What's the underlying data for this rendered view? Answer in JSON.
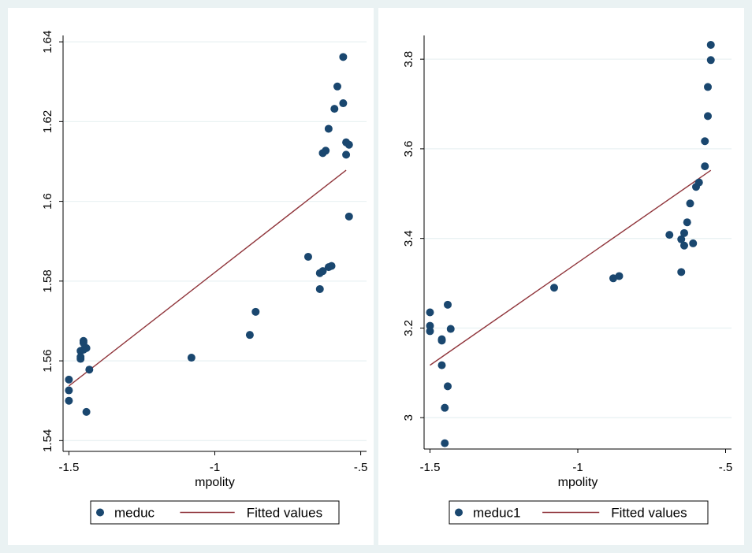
{
  "chart_data": [
    {
      "type": "scatter",
      "title": "",
      "xlabel": "mpolity",
      "ylabel": "",
      "xlim": [
        -1.52,
        -0.48
      ],
      "ylim": [
        1.5373,
        1.6416
      ],
      "x_ticks": [
        -1.5,
        -1,
        -0.5
      ],
      "x_tick_labels": [
        "-1.5",
        "-1",
        "-.5"
      ],
      "y_ticks": [
        1.54,
        1.56,
        1.58,
        1.6,
        1.62,
        1.64
      ],
      "y_tick_labels": [
        "1.54",
        "1.56",
        "1.58",
        "1.6",
        "1.62",
        "1.64"
      ],
      "grid": true,
      "legend_position": "bottom",
      "series": [
        {
          "name": "meduc",
          "kind": "scatter",
          "color": "#1a476f",
          "points": [
            [
              -1.5,
              1.5553
            ],
            [
              -1.5,
              1.5526
            ],
            [
              -1.5,
              1.55
            ],
            [
              -1.46,
              1.5625
            ],
            [
              -1.46,
              1.561
            ],
            [
              -1.46,
              1.5605
            ],
            [
              -1.45,
              1.565
            ],
            [
              -1.45,
              1.5645
            ],
            [
              -1.44,
              1.5632
            ],
            [
              -1.45,
              1.5628
            ],
            [
              -1.43,
              1.5578
            ],
            [
              -1.44,
              1.5472
            ],
            [
              -1.08,
              1.5608
            ],
            [
              -0.88,
              1.5665
            ],
            [
              -0.86,
              1.5723
            ],
            [
              -0.68,
              1.5861
            ],
            [
              -0.64,
              1.582
            ],
            [
              -0.64,
              1.578
            ],
            [
              -0.63,
              1.5825
            ],
            [
              -0.61,
              1.5835
            ],
            [
              -0.6,
              1.5838
            ],
            [
              -0.63,
              1.6121
            ],
            [
              -0.62,
              1.6127
            ],
            [
              -0.61,
              1.6182
            ],
            [
              -0.59,
              1.6232
            ],
            [
              -0.58,
              1.6288
            ],
            [
              -0.56,
              1.6362
            ],
            [
              -0.56,
              1.6246
            ],
            [
              -0.55,
              1.6148
            ],
            [
              -0.55,
              1.6117
            ],
            [
              -0.54,
              1.6142
            ],
            [
              -0.54,
              1.5962
            ]
          ]
        },
        {
          "name": "Fitted values",
          "kind": "line",
          "color": "#90353b",
          "points": [
            [
              -1.5,
              1.5537
            ],
            [
              -0.55,
              1.6078
            ]
          ]
        }
      ]
    },
    {
      "type": "scatter",
      "title": "",
      "xlabel": "mpolity",
      "ylabel": "",
      "xlim": [
        -1.52,
        -0.48
      ],
      "ylim": [
        2.93,
        3.853
      ],
      "x_ticks": [
        -1.5,
        -1,
        -0.5
      ],
      "x_tick_labels": [
        "-1.5",
        "-1",
        "-.5"
      ],
      "y_ticks": [
        3.0,
        3.2,
        3.4,
        3.6,
        3.8
      ],
      "y_tick_labels": [
        "3",
        "3.2",
        "3.4",
        "3.6",
        "3.8"
      ],
      "grid": true,
      "legend_position": "bottom",
      "series": [
        {
          "name": "meduc1",
          "kind": "scatter",
          "color": "#1a476f",
          "points": [
            [
              -1.5,
              3.235
            ],
            [
              -1.5,
              3.205
            ],
            [
              -1.5,
              3.193
            ],
            [
              -1.46,
              3.175
            ],
            [
              -1.46,
              3.172
            ],
            [
              -1.46,
              3.117
            ],
            [
              -1.44,
              3.252
            ],
            [
              -1.43,
              3.198
            ],
            [
              -1.44,
              3.07
            ],
            [
              -1.45,
              3.022
            ],
            [
              -1.45,
              2.943
            ],
            [
              -1.08,
              3.29
            ],
            [
              -0.88,
              3.311
            ],
            [
              -0.86,
              3.316
            ],
            [
              -0.69,
              3.408
            ],
            [
              -0.65,
              3.398
            ],
            [
              -0.64,
              3.412
            ],
            [
              -0.64,
              3.384
            ],
            [
              -0.63,
              3.436
            ],
            [
              -0.61,
              3.389
            ],
            [
              -0.62,
              3.478
            ],
            [
              -0.6,
              3.515
            ],
            [
              -0.59,
              3.525
            ],
            [
              -0.65,
              3.325
            ],
            [
              -0.57,
              3.561
            ],
            [
              -0.57,
              3.617
            ],
            [
              -0.56,
              3.673
            ],
            [
              -0.56,
              3.738
            ],
            [
              -0.55,
              3.798
            ],
            [
              -0.55,
              3.832
            ]
          ]
        },
        {
          "name": "Fitted values",
          "kind": "line",
          "color": "#90353b",
          "points": [
            [
              -1.5,
              3.117
            ],
            [
              -0.55,
              3.552
            ]
          ]
        }
      ]
    }
  ]
}
